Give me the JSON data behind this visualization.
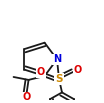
{
  "bg_color": "#ffffff",
  "bond_color": "#1a1a1a",
  "atom_colors": {
    "N": "#0000dd",
    "O": "#dd0000",
    "S": "#cc8800",
    "C": "#1a1a1a"
  },
  "lw": 1.3,
  "figsize": [
    1.04,
    1.03
  ],
  "dpi": 100
}
